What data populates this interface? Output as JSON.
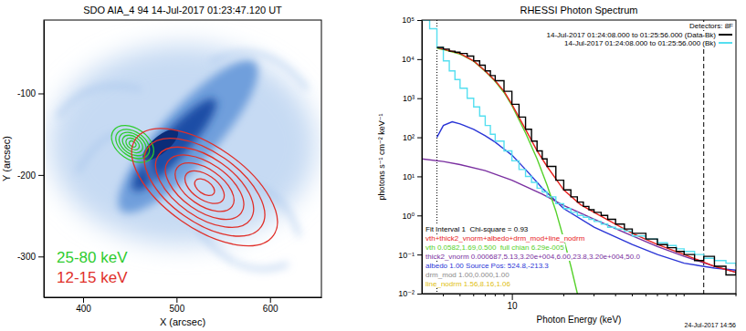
{
  "chart_data": [
    {
      "type": "contour",
      "title": "SDO AIA_4 94 14-Jul-2017 01:23:47.120 UT",
      "xlabel": "X (arcsec)",
      "ylabel": "Y (arcsec)",
      "xlim": [
        358,
        655
      ],
      "ylim": [
        -350,
        -10
      ],
      "xticks": [
        400,
        500,
        600
      ],
      "yticks": [
        -300,
        -200,
        -100
      ],
      "legend": "lower left",
      "series": [
        {
          "name": "25-80 keV",
          "color": "#2ecc2e",
          "center": [
            453,
            -162
          ],
          "rx": [
            4,
            8,
            12,
            16,
            20,
            25
          ],
          "ry": [
            3,
            6,
            9,
            12,
            15,
            19
          ]
        },
        {
          "name": "12-15 keV",
          "color": "#e0302a",
          "center": [
            530,
            -215
          ],
          "rx": [
            12,
            24,
            36,
            48,
            60,
            74,
            90
          ],
          "ry": [
            8,
            15,
            22,
            29,
            36,
            43,
            50
          ]
        }
      ]
    },
    {
      "type": "line",
      "log": true,
      "title": "RHESSI Photon Spectrum",
      "xlabel": "Photon Energy (keV)",
      "ylabel": "photons s⁻¹ cm⁻² keV⁻¹",
      "xlim": [
        3,
        200
      ],
      "ylim": [
        0.01,
        100000
      ],
      "xticks": [
        10
      ],
      "xminor_ticks": [
        4,
        5,
        6,
        7,
        8,
        9,
        20,
        30,
        40,
        50,
        60,
        70,
        80,
        90,
        100,
        200
      ],
      "yticks": [
        {
          "value": 0.01,
          "label": "10⁻²"
        },
        {
          "value": 0.1,
          "label": "10⁻¹"
        },
        {
          "value": 1,
          "label": "10⁰"
        },
        {
          "value": 10,
          "label": "10¹"
        },
        {
          "value": 100,
          "label": "10²"
        },
        {
          "value": 1000,
          "label": "10³"
        },
        {
          "value": 10000,
          "label": "10⁴"
        },
        {
          "value": 100000,
          "label": "10⁵"
        }
      ],
      "legend": "upper right",
      "detectors": "Detectors: 8F",
      "fit_label": "Fit Interval 1  Chi-square = 0.93",
      "fit_range": [
        3.67,
        130
      ],
      "footer": "24-Jul-2017 14:56",
      "series": [
        {
          "name": "14-Jul-2017 01:24:08.000 to 01:25:56.000 (Data-Bk)",
          "color": "#000000",
          "line_style": "step",
          "x": [
            3.67,
            4,
            4.33,
            4.67,
            5,
            5.5,
            6,
            6.5,
            7,
            7.5,
            8,
            9,
            10,
            11,
            12,
            13,
            14,
            15,
            16,
            18,
            20,
            22,
            24,
            26,
            28,
            30,
            33,
            36,
            40,
            45,
            50,
            60,
            70,
            80,
            90,
            100,
            115,
            130,
            150,
            175,
            200
          ],
          "values": [
            20000,
            18000,
            16000,
            15000,
            14000,
            12000,
            9000,
            7000,
            5000,
            3800,
            2800,
            1500,
            700,
            330,
            160,
            80,
            45,
            28,
            18,
            8,
            4.5,
            3,
            2.2,
            1.7,
            1.4,
            1.2,
            1,
            0.8,
            0.6,
            0.45,
            0.35,
            0.25,
            0.18,
            0.15,
            0.12,
            0.1,
            0.07,
            0.09,
            0.05,
            0.03,
            0.04
          ]
        },
        {
          "name": "14-Jul-2017 01:24:08.000 to 01:25:56.000 (Bk)",
          "color": "#55dff0",
          "line_style": "step",
          "x": [
            3,
            3.33,
            3.67,
            4,
            4.33,
            4.67,
            5,
            5.5,
            6,
            6.5,
            7,
            7.5,
            8,
            9,
            10,
            11,
            12,
            13,
            14,
            15,
            16,
            18,
            20,
            22,
            24,
            26,
            28,
            30,
            33,
            36,
            40,
            45,
            50,
            60,
            70,
            80,
            90,
            100,
            115,
            130,
            150,
            175,
            200
          ],
          "values": [
            100000,
            60000,
            20000,
            9000,
            5000,
            3000,
            1800,
            1000,
            600,
            350,
            200,
            120,
            80,
            45,
            25,
            15,
            10,
            7,
            5,
            4,
            3,
            2,
            1.5,
            1.2,
            1,
            0.9,
            0.8,
            0.7,
            0.6,
            0.5,
            0.45,
            0.4,
            0.3,
            0.25,
            0.2,
            0.17,
            0.14,
            0.12,
            0.1,
            0.08,
            0.07,
            0.06,
            0.05
          ]
        },
        {
          "name": "vth+thick2_vnorm+albedo+drm_mod+line_nodrm",
          "color": "#e8211d",
          "line_style": "solid",
          "x": [
            3.67,
            4,
            5,
            6,
            7,
            8,
            9,
            10,
            12,
            14,
            16,
            20,
            25,
            30,
            40,
            50,
            70,
            100,
            150,
            200
          ],
          "values": [
            20000,
            18000,
            14000,
            9000,
            5000,
            2800,
            1500,
            700,
            160,
            45,
            18,
            4.5,
            1.9,
            1.2,
            0.6,
            0.35,
            0.18,
            0.1,
            0.05,
            0.035
          ]
        },
        {
          "name": "vth 0.0582,1.69,0.500  full chian 6.29e-005",
          "color": "#55d12a",
          "line_style": "solid",
          "x": [
            3.67,
            4,
            5,
            6,
            7,
            8,
            9,
            10,
            12,
            14,
            16,
            18,
            20,
            22,
            24
          ],
          "values": [
            19000,
            17500,
            13500,
            8800,
            4900,
            2700,
            1400,
            650,
            130,
            28,
            6,
            1.3,
            0.25,
            0.05,
            0.01
          ]
        },
        {
          "name": "thick2_vnorm 0.000687,5.13,3.20e+004,6.00,23.8,3.20e+004,50.0",
          "color": "#7a2fa0",
          "line_style": "solid",
          "x": [
            3,
            4,
            5,
            7,
            10,
            15,
            20,
            30,
            50,
            70,
            100,
            150,
            200
          ],
          "values": [
            28,
            24,
            20,
            14,
            8,
            3.5,
            1.8,
            0.8,
            0.3,
            0.16,
            0.09,
            0.05,
            0.035
          ]
        },
        {
          "name": "albedo 1.00 Source Pos: 524.8,-213.3",
          "color": "#2a35d6",
          "line_style": "solid",
          "x": [
            3.67,
            4,
            4.5,
            5,
            6,
            7,
            8,
            9,
            10,
            12,
            15,
            20,
            30,
            50,
            70,
            100,
            150,
            200
          ],
          "values": [
            100,
            200,
            250,
            220,
            160,
            110,
            75,
            50,
            35,
            15,
            5,
            1.5,
            0.5,
            0.18,
            0.1,
            0.06,
            0.045,
            0.04
          ]
        }
      ],
      "annotations": [
        {
          "text": "drm_mod 1.00,0.000,1.00",
          "color": "#8a8a8a"
        },
        {
          "text": "line_nodrm 1.56,8.16,1.06",
          "color": "#e0c010"
        }
      ]
    }
  ]
}
